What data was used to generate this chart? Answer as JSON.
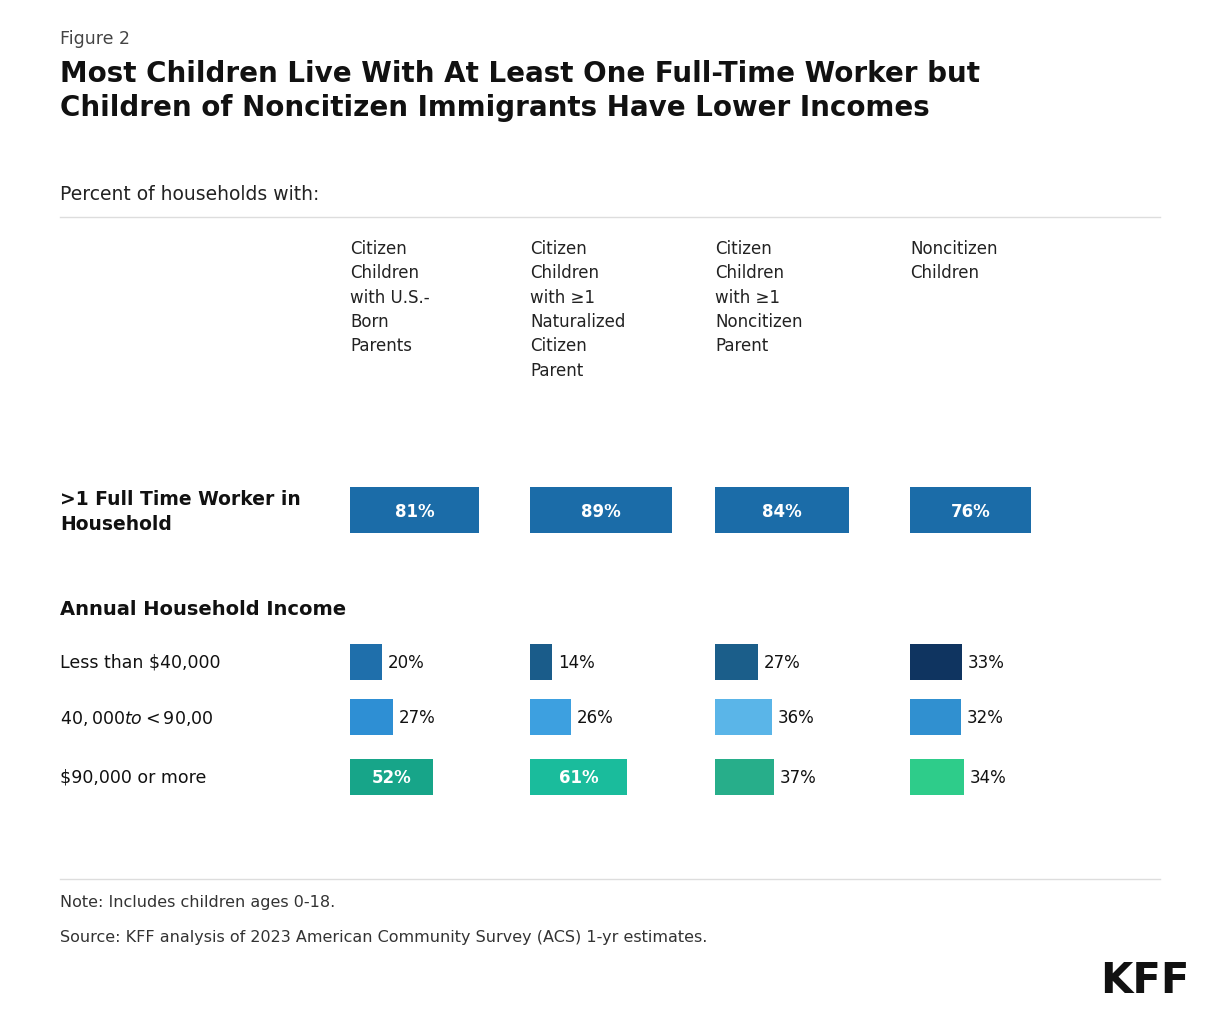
{
  "figure_label": "Figure 2",
  "title_line1": "Most Children Live With At Least One Full-Time Worker but",
  "title_line2": "Children of Noncitizen Immigrants Have Lower Incomes",
  "subtitle": "Percent of households with:",
  "column_headers": [
    "Citizen\nChildren\nwith U.S.-\nBorn\nParents",
    "Citizen\nChildren\nwith ≥1\nNaturalized\nCitizen\nParent",
    "Citizen\nChildren\nwith ≥1\nNoncitizen\nParent",
    "Noncitizen\nChildren"
  ],
  "section1_label": ">1 Full Time Worker in\nHousehold",
  "section1_values": [
    81,
    89,
    84,
    76
  ],
  "section1_color": "#1b6ca8",
  "section2_label": "Annual Household Income",
  "income_rows": [
    {
      "label": "Less than $40,000",
      "values": [
        20,
        14,
        27,
        33
      ],
      "colors": [
        "#1f6fab",
        "#1a5f8a",
        "#1b5e8a",
        "#0f3460"
      ],
      "label_inside": [
        false,
        false,
        false,
        false
      ]
    },
    {
      "label": "$40,000 to <$90,00",
      "values": [
        27,
        26,
        36,
        32
      ],
      "colors": [
        "#2e8fd4",
        "#3498db",
        "#5dade2",
        "#2980b9"
      ],
      "label_inside": [
        false,
        false,
        false,
        false
      ]
    },
    {
      "label": "$90,000 or more",
      "values": [
        52,
        61,
        37,
        34
      ],
      "colors": [
        "#17a589",
        "#1abc9c",
        "#27ae8a",
        "#2ecc8a"
      ],
      "label_inside": [
        true,
        true,
        false,
        false
      ]
    }
  ],
  "note": "Note: Includes children ages 0-18.",
  "source": "Source: KFF analysis of 2023 American Community Survey (ACS) 1-yr estimates.",
  "bg_color": "#ffffff",
  "text_color": "#1a1a1a"
}
